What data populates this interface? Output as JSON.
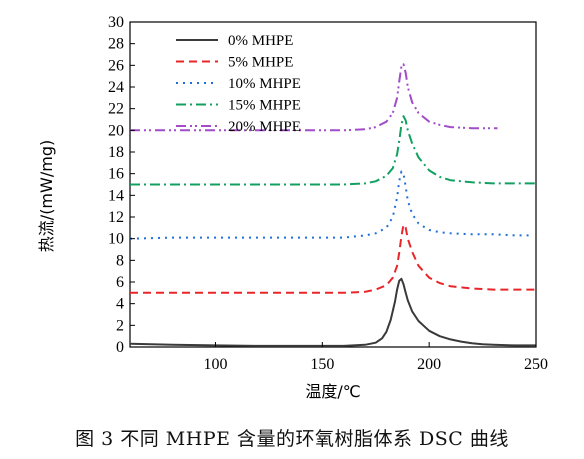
{
  "caption": "图 3   不同 MHPE 含量的环氧树脂体系 DSC 曲线",
  "chart_data": {
    "type": "line",
    "xlabel": "温度/℃",
    "ylabel": "热流/(mW/mg)",
    "xlim": [
      60,
      250
    ],
    "ylim": [
      0,
      30
    ],
    "xticks": [
      100,
      150,
      200,
      250
    ],
    "yticks": [
      0,
      2,
      4,
      6,
      8,
      10,
      12,
      14,
      16,
      18,
      20,
      22,
      24,
      26,
      28,
      30
    ],
    "grid": false,
    "legend_position": "top-left",
    "series": [
      {
        "name": "0% MHPE",
        "color": "#3a3a3a",
        "dash": "solid",
        "x": [
          60,
          80,
          100,
          120,
          140,
          160,
          170,
          175,
          178,
          180,
          182,
          184,
          185,
          186,
          187,
          188,
          189,
          190,
          192,
          195,
          200,
          205,
          210,
          215,
          220,
          225,
          230,
          240,
          250
        ],
        "y": [
          0.3,
          0.2,
          0.15,
          0.1,
          0.1,
          0.1,
          0.2,
          0.4,
          0.8,
          1.4,
          2.5,
          4.2,
          5.3,
          6.1,
          6.3,
          5.8,
          5.0,
          4.3,
          3.3,
          2.4,
          1.5,
          1.0,
          0.7,
          0.5,
          0.35,
          0.25,
          0.2,
          0.15,
          0.15
        ]
      },
      {
        "name": "5% MHPE",
        "color": "#e8262a",
        "dash": "8,5",
        "x": [
          60,
          80,
          100,
          120,
          140,
          160,
          170,
          175,
          180,
          183,
          185,
          186,
          187,
          188,
          189,
          190,
          192,
          195,
          200,
          205,
          210,
          220,
          230,
          240,
          250
        ],
        "y": [
          5.0,
          5.0,
          5.0,
          5.0,
          5.0,
          5.0,
          5.1,
          5.3,
          5.7,
          6.4,
          7.5,
          8.7,
          10.2,
          11.3,
          11.0,
          10.0,
          8.8,
          7.5,
          6.4,
          5.9,
          5.6,
          5.4,
          5.3,
          5.3,
          5.3
        ]
      },
      {
        "name": "10% MHPE",
        "color": "#1e6fd8",
        "dash": "2,5",
        "x": [
          60,
          80,
          100,
          120,
          140,
          160,
          170,
          175,
          180,
          183,
          185,
          186,
          187,
          188,
          189,
          190,
          192,
          195,
          200,
          205,
          210,
          220,
          230,
          240,
          248
        ],
        "y": [
          10.0,
          10.1,
          10.1,
          10.1,
          10.1,
          10.1,
          10.3,
          10.5,
          11.0,
          12.0,
          13.8,
          15.3,
          16.2,
          16.0,
          14.8,
          13.5,
          12.3,
          11.4,
          10.8,
          10.6,
          10.5,
          10.4,
          10.4,
          10.3,
          10.3
        ]
      },
      {
        "name": "15% MHPE",
        "color": "#12a060",
        "dash": "10,4,2,4",
        "x": [
          60,
          80,
          100,
          120,
          140,
          160,
          170,
          175,
          180,
          183,
          185,
          186,
          187,
          188,
          189,
          190,
          192,
          195,
          200,
          205,
          210,
          220,
          230,
          240,
          250
        ],
        "y": [
          15.0,
          15.0,
          15.0,
          15.0,
          15.0,
          15.0,
          15.1,
          15.3,
          15.8,
          16.5,
          17.8,
          19.0,
          20.5,
          21.3,
          20.9,
          20.0,
          18.8,
          17.5,
          16.3,
          15.7,
          15.4,
          15.2,
          15.1,
          15.1,
          15.1
        ]
      },
      {
        "name": "20% MHPE",
        "color": "#a24cc8",
        "dash": "10,4,2,3,2,4",
        "x": [
          60,
          80,
          100,
          120,
          140,
          160,
          170,
          175,
          180,
          183,
          185,
          186,
          187,
          188,
          189,
          190,
          192,
          195,
          200,
          205,
          210,
          220,
          230,
          232
        ],
        "y": [
          20.0,
          20.0,
          20.0,
          20.0,
          20.0,
          20.0,
          20.1,
          20.3,
          20.8,
          21.6,
          23.0,
          24.5,
          25.9,
          26.1,
          25.3,
          24.0,
          22.6,
          21.6,
          20.8,
          20.5,
          20.3,
          20.2,
          20.2,
          20.2
        ]
      }
    ]
  }
}
